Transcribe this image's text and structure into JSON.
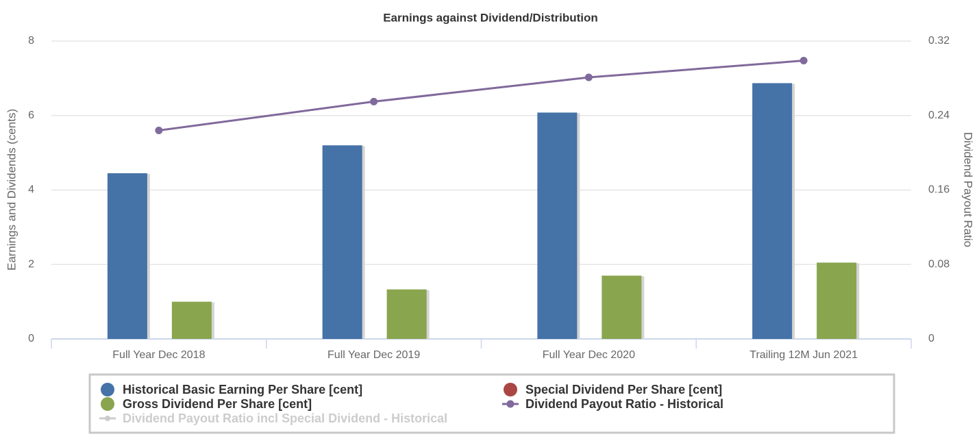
{
  "chart_data": {
    "type": "bar",
    "title": "Earnings against Dividend/Distribution",
    "ylabel": "Earnings and Dividends (cents)",
    "y2label": "Dividend Payout Ratio",
    "categories": [
      "Full Year Dec 2018",
      "Full Year Dec 2019",
      "Full Year Dec 2020",
      "Trailing 12M Jun 2021"
    ],
    "series": [
      {
        "name": "Historical Basic Earning Per Share [cent]",
        "type": "bar",
        "color": "#4572a7",
        "values": [
          4.45,
          5.2,
          6.08,
          6.87
        ]
      },
      {
        "name": "Special Dividend Per Share [cent]",
        "type": "bar",
        "color": "#aa4643",
        "values": [
          null,
          null,
          null,
          null
        ]
      },
      {
        "name": "Gross Dividend Per Share [cent]",
        "type": "bar",
        "color": "#89a54e",
        "values": [
          1.0,
          1.33,
          1.7,
          2.05
        ]
      },
      {
        "name": "Dividend Payout Ratio - Historical",
        "type": "line",
        "axis": "y2",
        "color": "#80699b",
        "values": [
          0.224,
          0.255,
          0.281,
          0.299
        ]
      },
      {
        "name": "Dividend Payout Ratio incl Special Dividend - Historical",
        "type": "line",
        "axis": "y2",
        "color": "#cccccc",
        "visible": false,
        "values": [
          null,
          null,
          null,
          null
        ]
      }
    ],
    "ylim": [
      0,
      8
    ],
    "yticks": [
      0,
      2,
      4,
      6,
      8
    ],
    "y2lim": [
      0,
      0.32
    ],
    "y2ticks": [
      0,
      0.08,
      0.16,
      0.24,
      0.32
    ],
    "grid": true,
    "legend": "bottom"
  }
}
